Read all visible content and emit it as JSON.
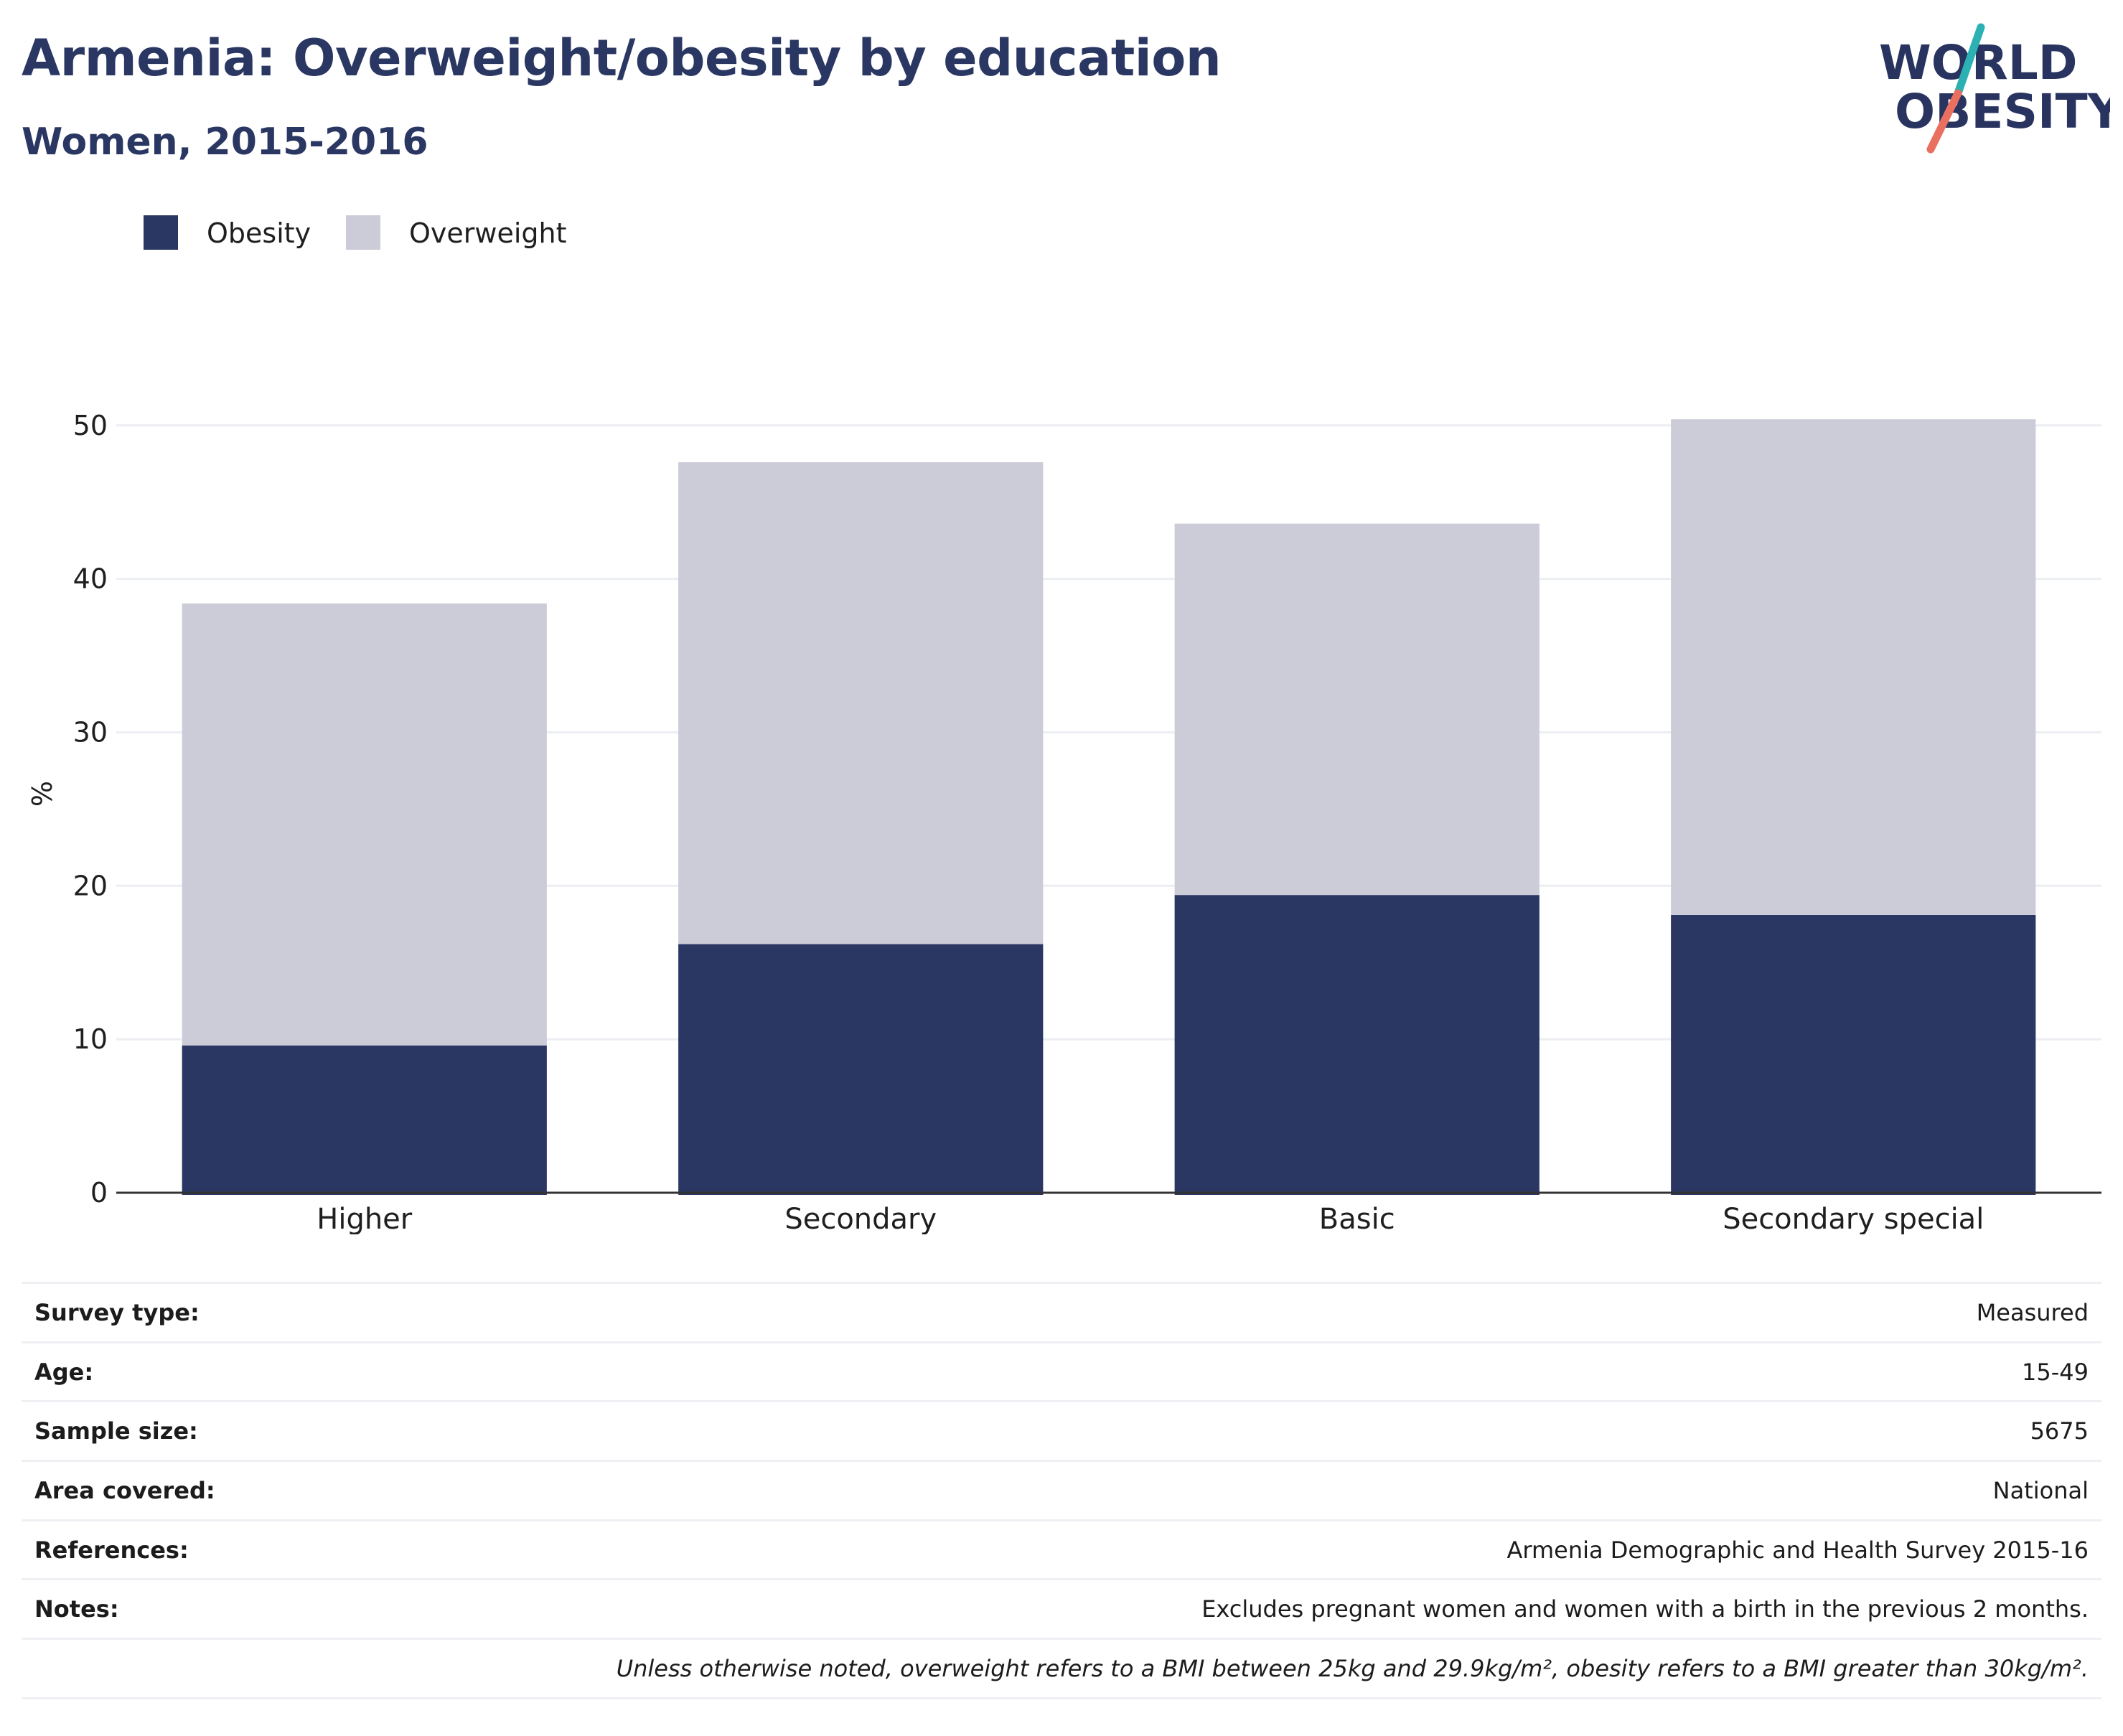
{
  "header": {
    "title": "Armenia: Overweight/obesity by education",
    "subtitle": "Women, 2015-2016"
  },
  "logo": {
    "line1": "WORLD",
    "line2": "OBESITY",
    "colors": {
      "text": "#28335f",
      "slash_top": "#2bb1b4",
      "slash_bottom": "#e96f5e"
    }
  },
  "colors": {
    "obesity": "#2a3763",
    "overweight": "#cbccd8",
    "grid": "#eceef2",
    "axis": "#333333"
  },
  "chart_data": {
    "type": "bar",
    "stacked": true,
    "categories": [
      "Higher",
      "Secondary",
      "Basic",
      "Secondary special"
    ],
    "series": [
      {
        "name": "Obesity",
        "values": [
          9.6,
          16.2,
          19.4,
          18.1
        ]
      },
      {
        "name": "Overweight",
        "values": [
          28.8,
          31.4,
          24.2,
          32.3
        ]
      }
    ],
    "ylabel": "%",
    "ylim": [
      0,
      52
    ],
    "yticks": [
      0,
      10,
      20,
      30,
      40,
      50
    ],
    "grid": true,
    "legend": "top-left"
  },
  "info": {
    "rows": [
      {
        "key": "Survey type:",
        "value": "Measured"
      },
      {
        "key": "Age:",
        "value": "15-49"
      },
      {
        "key": "Sample size:",
        "value": "5675"
      },
      {
        "key": "Area covered:",
        "value": "National"
      },
      {
        "key": "References:",
        "value": "Armenia Demographic and Health Survey 2015-16"
      },
      {
        "key": "Notes:",
        "value": "Excludes pregnant women and women with a birth in the previous 2 months."
      }
    ],
    "footnote": "Unless otherwise noted, overweight refers to a BMI between 25kg and 29.9kg/m², obesity refers to a BMI greater than 30kg/m²."
  }
}
